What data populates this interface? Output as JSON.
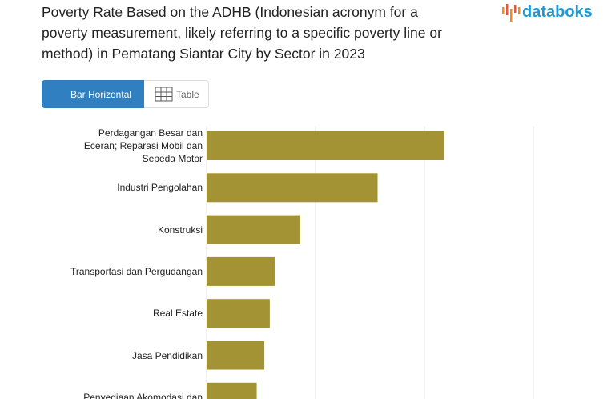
{
  "header": {
    "title": "Poverty Rate Based on the ADHB (Indonesian acronym for a poverty measurement, likely referring to a specific poverty line or method) in Pematang Siantar City by Sector in 2023",
    "logo": "databoks"
  },
  "tabs": [
    "Bar Horizontal",
    "Table"
  ],
  "chart_data": {
    "type": "barh",
    "categories": [
      "Perdagangan Besar dan Eceran; Reparasi Mobil dan Sepeda Motor",
      "Industri Pengolahan",
      "Konstruksi",
      "Transportasi dan Pergudangan",
      "Real Estate",
      "Jasa Pendidikan",
      "Penyediaan Akomodasi dan"
    ],
    "values": [
      21.8,
      15.7,
      8.6,
      6.3,
      5.8,
      5.3,
      4.6
    ],
    "color": "#a39334",
    "xlim": [
      0,
      30
    ],
    "xticks": [
      0,
      10,
      20,
      30
    ],
    "grid": true
  }
}
